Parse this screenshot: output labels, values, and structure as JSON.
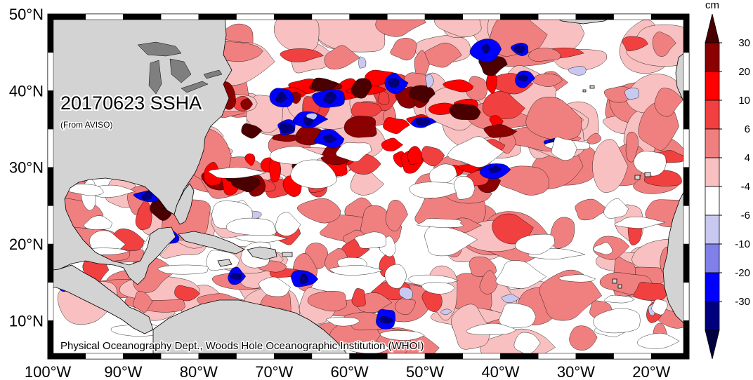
{
  "map": {
    "title": "20170623 SSHA",
    "source": "(From AVISO)",
    "credit": "Physical Oceanography Dept., Woods Hole Oceanographic Institution (WHOI)",
    "lon_labels": [
      "100°W",
      "90°W",
      "80°W",
      "70°W",
      "60°W",
      "50°W",
      "40°W",
      "30°W",
      "20°W"
    ],
    "lat_labels": [
      "50°N",
      "40°N",
      "30°N",
      "20°N",
      "10°N"
    ],
    "lon_range": [
      -100,
      -15
    ],
    "lat_range": [
      5,
      50
    ],
    "land_color": "#d3d3d3",
    "ocean_base_color": "#ffffff"
  },
  "colorbar": {
    "unit": "cm",
    "labels": [
      "30",
      "20",
      "10",
      "6",
      "4",
      "-4",
      "-6",
      "-10",
      "-20",
      "-30"
    ],
    "colors": [
      "#4a0000",
      "#8b0000",
      "#ff0000",
      "#f04040",
      "#f08080",
      "#f8c0c0",
      "#ffffff",
      "#c8c8f0",
      "#8080e8",
      "#0000ff",
      "#00007f",
      "#000040"
    ]
  }
}
